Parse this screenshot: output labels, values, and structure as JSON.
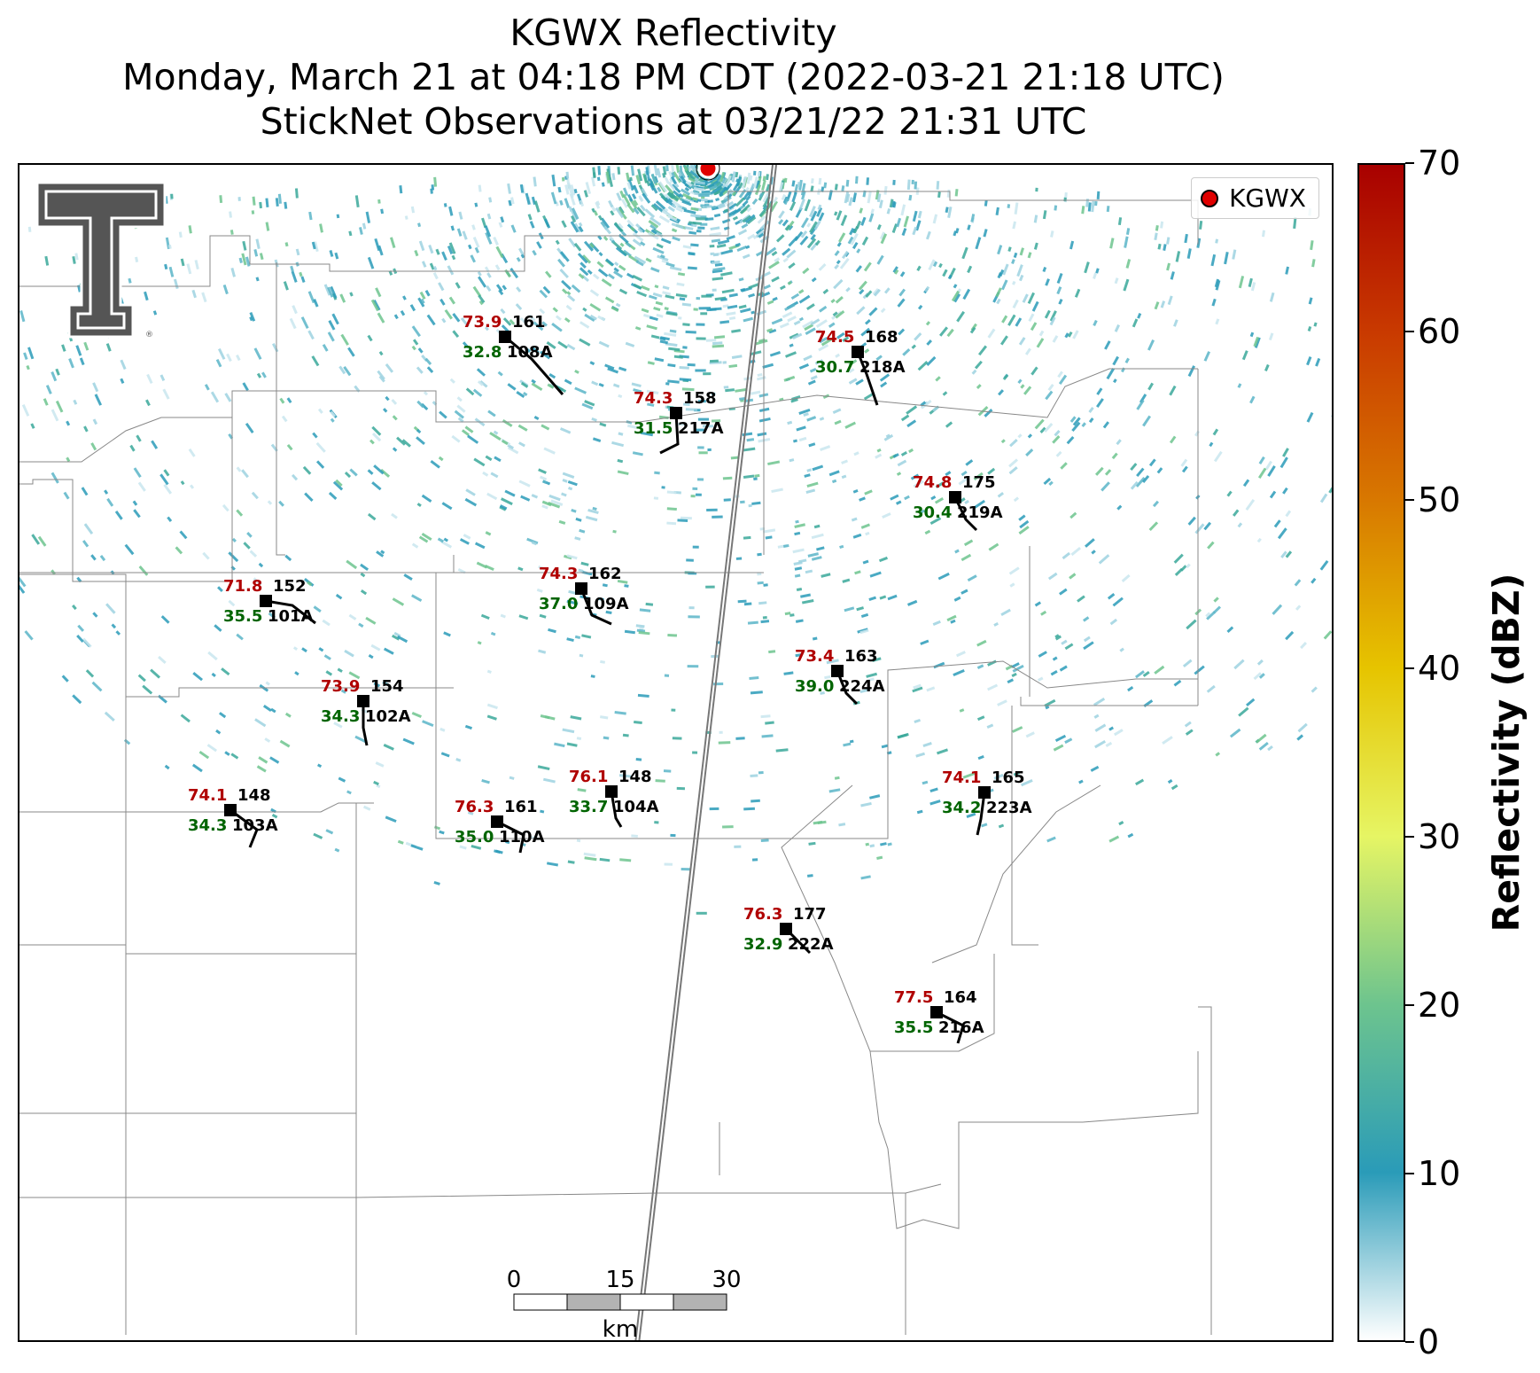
{
  "title": {
    "line1": "KGWX Reflectivity",
    "line2": "Monday, March 21 at 04:18 PM CDT (2022-03-21 21:18 UTC)",
    "line3": "StickNet Observations at 03/21/22 21:31 UTC"
  },
  "legend": {
    "label": "KGWX",
    "marker_color": "#e00000"
  },
  "colorbar": {
    "title": "Reflectivity (dBZ)",
    "min": 0,
    "max": 70,
    "ticks": [
      "0",
      "10",
      "20",
      "30",
      "40",
      "50",
      "60",
      "70"
    ],
    "colors": [
      "#ffffff",
      "#2a9bb8",
      "#6dc48e",
      "#e6f564",
      "#e6c400",
      "#d87800",
      "#c93a00",
      "#a80000"
    ]
  },
  "scalebar": {
    "ticks": [
      "0",
      "15",
      "30"
    ],
    "unit": "km"
  },
  "stations": [
    {
      "id": "108A",
      "temp": "73.9",
      "dew": "32.8",
      "pressure": "161"
    },
    {
      "id": "168_218A",
      "temp": "74.5",
      "dew": "30.7",
      "pressure": "168",
      "label": "218A"
    },
    {
      "id": "217A",
      "temp": "74.3",
      "dew": "31.5",
      "pressure": "158"
    },
    {
      "id": "219A",
      "temp": "74.8",
      "dew": "30.4",
      "pressure": "175"
    },
    {
      "id": "101A",
      "temp": "71.8",
      "dew": "35.5",
      "pressure": "152"
    },
    {
      "id": "109A",
      "temp": "74.3",
      "dew": "37.0",
      "pressure": "162"
    },
    {
      "id": "224A",
      "temp": "73.4",
      "dew": "39.0",
      "pressure": "163"
    },
    {
      "id": "102A",
      "temp": "73.9",
      "dew": "34.3",
      "pressure": "154"
    },
    {
      "id": "103A",
      "temp": "74.1",
      "dew": "34.3",
      "pressure": "148"
    },
    {
      "id": "110A",
      "temp": "76.3",
      "dew": "35.0",
      "pressure": "161"
    },
    {
      "id": "104A",
      "temp": "76.1",
      "dew": "33.7",
      "pressure": "148"
    },
    {
      "id": "223A",
      "temp": "74.1",
      "dew": "34.2",
      "pressure": "165"
    },
    {
      "id": "222A",
      "temp": "76.3",
      "dew": "32.9",
      "pressure": "177"
    },
    {
      "id": "216A",
      "temp": "77.5",
      "dew": "35.5",
      "pressure": "164"
    }
  ]
}
